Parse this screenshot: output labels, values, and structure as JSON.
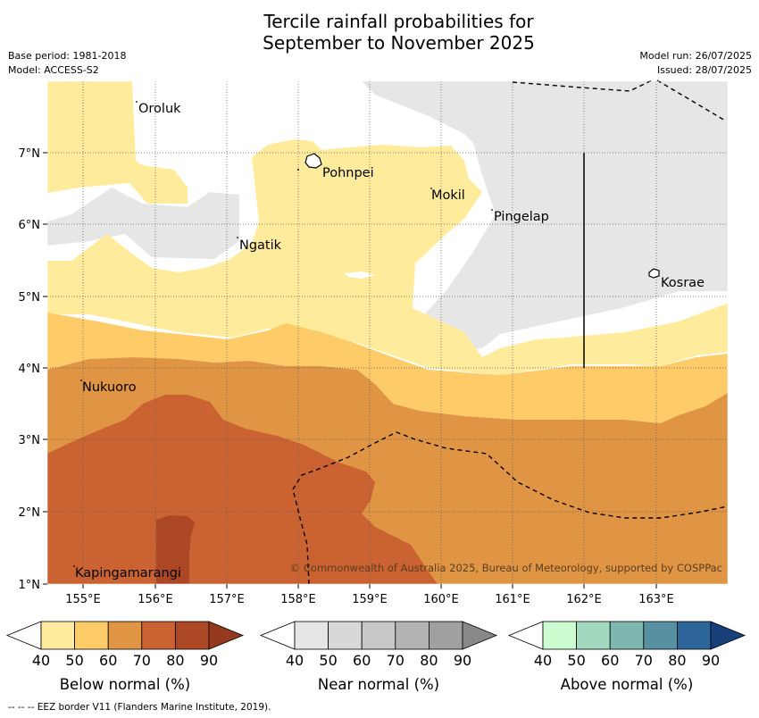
{
  "title_line1": "Tercile rainfall probabilities for",
  "title_line2": "September to November 2025",
  "base_period": "Base period: 1981-2018",
  "model": "Model: ACCESS-S2",
  "model_run": "Model run: 26/07/2025",
  "issued": "Issued: 28/07/2025",
  "copyright": "© Commonwealth of Australia 2025, Bureau of Meteorology, supported by COSPPac",
  "footnote": "-- -- -- EEZ border V11 (Flanders Marine Institute, 2019).",
  "lon_ticks": [
    "155°E",
    "156°E",
    "157°E",
    "158°E",
    "159°E",
    "160°E",
    "161°E",
    "162°E",
    "163°E"
  ],
  "lat_ticks": [
    "7°N",
    "6°N",
    "5°N",
    "4°N",
    "3°N",
    "2°N",
    "1°N"
  ],
  "places": {
    "oroluk": "Oroluk",
    "pohnpei": "Pohnpei",
    "mokil": "Mokil",
    "pingelap": "Pingelap",
    "ngatik": "Ngatik",
    "kosrae": "Kosrae",
    "nukuoro": "Nukuoro",
    "kapingamarangi": "Kapingamarangi"
  },
  "colorbars": {
    "below": {
      "title": "Below normal (%)",
      "ticks": [
        "40",
        "50",
        "60",
        "70",
        "80",
        "90"
      ],
      "colors": [
        "#ffeb9c",
        "#fecb69",
        "#e09545",
        "#cb6231",
        "#ad4826",
        "#953a1f"
      ]
    },
    "near": {
      "title": "Near normal (%)",
      "ticks": [
        "40",
        "50",
        "60",
        "70",
        "80",
        "90"
      ],
      "colors": [
        "#e6e6e6",
        "#d8d8d8",
        "#c8c8c8",
        "#b4b4b4",
        "#a0a0a0",
        "#888888"
      ]
    },
    "above": {
      "title": "Above normal (%)",
      "ticks": [
        "40",
        "50",
        "60",
        "70",
        "80",
        "90"
      ],
      "colors": [
        "#ccfcd0",
        "#a2d8bd",
        "#7fb6b0",
        "#5790a1",
        "#2d6598",
        "#173f7a"
      ]
    }
  },
  "legend_colors": {
    "cat_50_below": "#ffeb9c",
    "cat_60_below": "#fecb69",
    "cat_70_below": "#e09545",
    "cat_80_below": "#cb6231",
    "cat_90_below": "#ad4826",
    "near_50": "#e6e6e6"
  }
}
